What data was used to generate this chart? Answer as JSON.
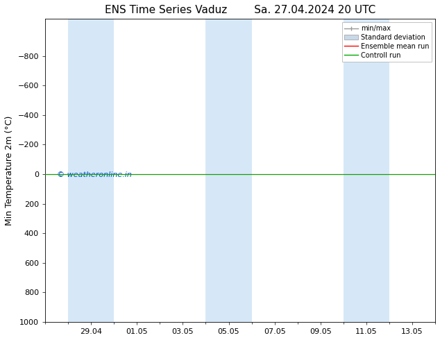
{
  "title_left": "ENS Time Series Vaduz",
  "title_right": "Sa. 27.04.2024 20 UTC",
  "ylabel": "Min Temperature 2m (°C)",
  "ylim_bottom": 1000,
  "ylim_top": -1050,
  "yticks": [
    -800,
    -600,
    -400,
    -200,
    0,
    200,
    400,
    600,
    800,
    1000
  ],
  "xtick_labels": [
    "29.04",
    "01.05",
    "03.05",
    "05.05",
    "07.05",
    "09.05",
    "11.05",
    "13.05"
  ],
  "xtick_positions": [
    2,
    4,
    6,
    8,
    10,
    12,
    14,
    16
  ],
  "xlim_left": 0,
  "xlim_right": 17,
  "background_color": "#ffffff",
  "plot_bg_color": "#ffffff",
  "shaded_band_color": "#d6e8f7",
  "shaded_bands": [
    {
      "start": 1.0,
      "end": 3.0
    },
    {
      "start": 7.0,
      "end": 9.0
    },
    {
      "start": 13.0,
      "end": 15.0
    }
  ],
  "control_run_y": 0,
  "ensemble_mean_y": 0,
  "ensemble_mean_color": "#ff0000",
  "control_run_color": "#00aa00",
  "minmax_color": "#999999",
  "std_dev_color": "#c8d8e8",
  "watermark_text": "© weatheronline.in",
  "watermark_color": "#0055cc",
  "watermark_fontsize": 8,
  "legend_labels": [
    "min/max",
    "Standard deviation",
    "Ensemble mean run",
    "Controll run"
  ],
  "title_fontsize": 11,
  "tick_fontsize": 8,
  "axis_label_fontsize": 9
}
